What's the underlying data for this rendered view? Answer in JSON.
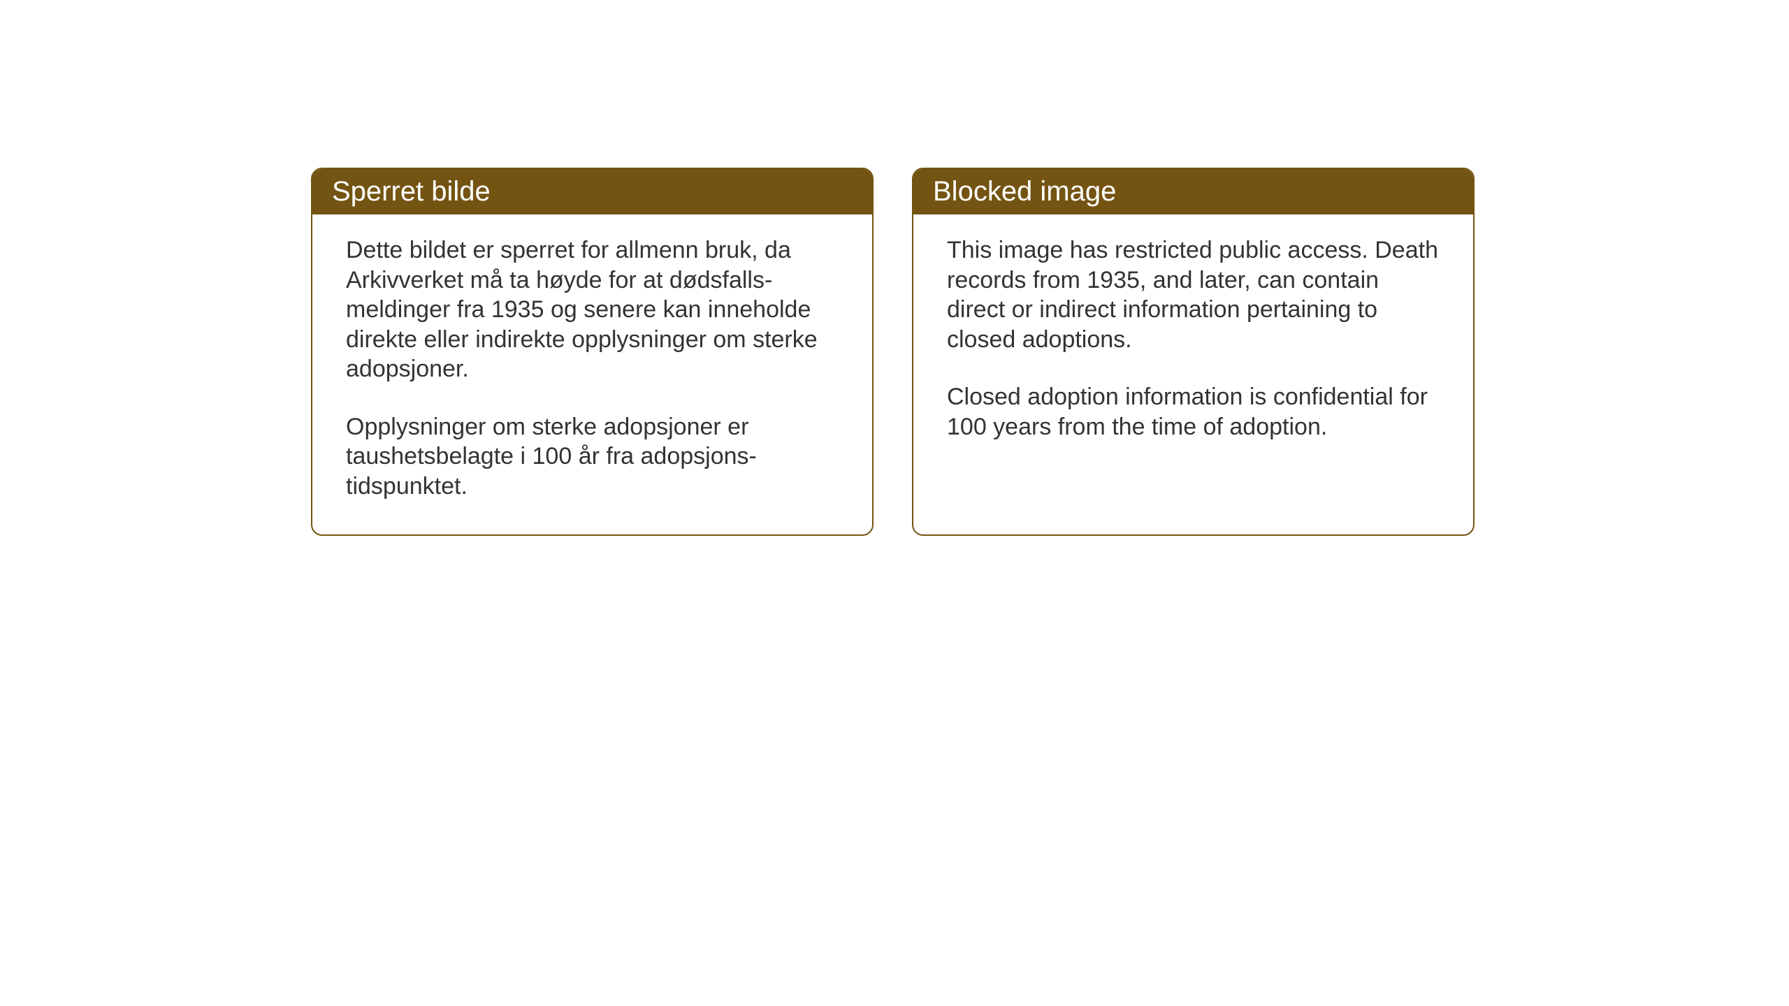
{
  "layout": {
    "background_color": "#ffffff",
    "card_border_color": "#745412",
    "card_border_radius": 16,
    "header_background": "#745412",
    "header_text_color": "#ffffff",
    "body_text_color": "#333333",
    "header_fontsize": 40,
    "body_fontsize": 34
  },
  "cards": {
    "norwegian": {
      "title": "Sperret bilde",
      "paragraph1": "Dette bildet er sperret for allmenn bruk, da Arkivverket må ta høyde for at dødsfalls-meldinger fra 1935 og senere kan inneholde direkte eller indirekte opplysninger om sterke adopsjoner.",
      "paragraph2": "Opplysninger om sterke adopsjoner er taushetsbelagte i 100 år fra adopsjons-tidspunktet."
    },
    "english": {
      "title": "Blocked image",
      "paragraph1": "This image has restricted public access. Death records from 1935, and later, can contain direct or indirect information pertaining to closed adoptions.",
      "paragraph2": "Closed adoption information is confidential for 100 years from the time of adoption."
    }
  }
}
